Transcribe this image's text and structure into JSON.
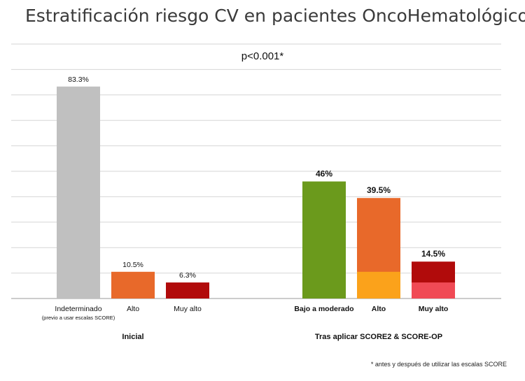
{
  "chart_data": {
    "type": "bar",
    "title": "Estratificación riesgo CV en pacientes OncoHematológicos",
    "annotation": "p<0.001*",
    "footnote": "* antes y después de utilizar las escalas SCORE",
    "ylim": [
      0,
      100
    ],
    "grid": true,
    "groups": [
      {
        "name": "Inicial",
        "bars": [
          {
            "label": "Indeterminado",
            "sublabel": "(previo a usar escalas SCORE)",
            "value": 83.3,
            "value_label": "83.3%",
            "color": "#c0c0c0",
            "highlight": null
          },
          {
            "label": "Alto",
            "value": 10.5,
            "value_label": "10.5%",
            "color": "#e8692a",
            "highlight": null
          },
          {
            "label": "Muy alto",
            "value": 6.3,
            "value_label": "6.3%",
            "color": "#b10b0b",
            "highlight": null
          }
        ]
      },
      {
        "name": "Tras aplicar SCORE2 & SCORE-OP",
        "bars": [
          {
            "label": "Bajo a moderado",
            "value": 46,
            "value_label": "46%",
            "color": "#6b9a1c",
            "highlight": null
          },
          {
            "label": "Alto",
            "value": 39.5,
            "value_label": "39.5%",
            "color": "#e8692a",
            "highlight": {
              "value": 10.5,
              "color": "#fba21b"
            }
          },
          {
            "label": "Muy alto",
            "value": 14.5,
            "value_label": "14.5%",
            "color": "#b10b0b",
            "highlight": {
              "value": 6.3,
              "color": "#f04a55"
            }
          }
        ]
      }
    ]
  }
}
